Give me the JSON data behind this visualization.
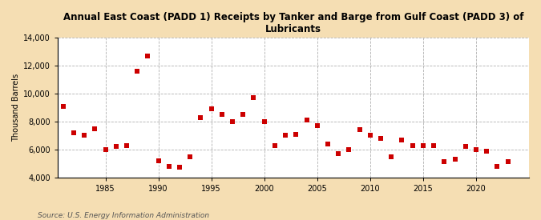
{
  "title": "Annual East Coast (PADD 1) Receipts by Tanker and Barge from Gulf Coast (PADD 3) of\nLubricants",
  "ylabel": "Thousand Barrels",
  "source": "Source: U.S. Energy Information Administration",
  "background_color": "#f5deb3",
  "plot_bg_color": "#ffffff",
  "marker_color": "#cc0000",
  "marker_size": 5,
  "ylim": [
    4000,
    14000
  ],
  "yticks": [
    4000,
    6000,
    8000,
    10000,
    12000,
    14000
  ],
  "xlim": [
    1980.5,
    2025
  ],
  "xticks": [
    1985,
    1990,
    1995,
    2000,
    2005,
    2010,
    2015,
    2020
  ],
  "years": [
    1981,
    1982,
    1983,
    1984,
    1985,
    1986,
    1987,
    1988,
    1989,
    1990,
    1991,
    1992,
    1993,
    1994,
    1995,
    1996,
    1997,
    1998,
    1999,
    2000,
    2001,
    2002,
    2003,
    2004,
    2005,
    2006,
    2007,
    2008,
    2009,
    2010,
    2011,
    2012,
    2013,
    2014,
    2015,
    2016,
    2017,
    2018,
    2019,
    2020,
    2021,
    2022,
    2023
  ],
  "values": [
    9100,
    7200,
    7000,
    7500,
    6000,
    6200,
    6300,
    11600,
    12700,
    5200,
    4800,
    4700,
    5500,
    8300,
    8900,
    8500,
    8000,
    8500,
    9700,
    8000,
    6300,
    7000,
    7100,
    8100,
    7700,
    6400,
    5700,
    6000,
    7400,
    7000,
    6800,
    5500,
    6700,
    6300,
    6300,
    6300,
    5100,
    5300,
    6200,
    6000,
    5900,
    4800,
    5100
  ]
}
